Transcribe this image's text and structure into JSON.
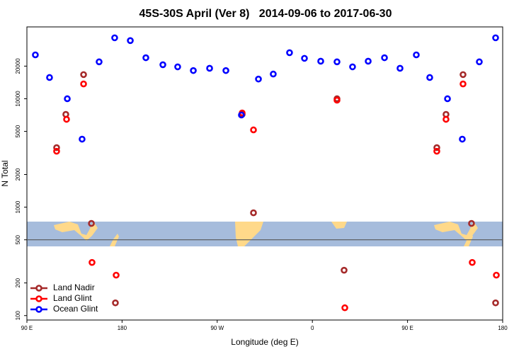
{
  "chart_data": {
    "type": "scatter",
    "title": "45S-30S April (Ver 8)   2014-09-06 to 2017-06-30",
    "xlabel": "Longitude (deg E)",
    "ylabel": "N Total",
    "xlim": [
      90,
      540
    ],
    "xticks": [
      {
        "value": 90,
        "label": "90 E"
      },
      {
        "value": 180,
        "label": "180"
      },
      {
        "value": 270,
        "label": "90 W"
      },
      {
        "value": 360,
        "label": "0"
      },
      {
        "value": 450,
        "label": "90 E"
      },
      {
        "value": 540,
        "label": "180"
      }
    ],
    "ylim": [
      91,
      46000
    ],
    "yticks": [
      100,
      200,
      500,
      1000,
      2000,
      5000,
      10000,
      20000
    ],
    "ylog": true,
    "hline": 500,
    "legend": "lower left",
    "series": [
      {
        "name": "Land Nadir",
        "color": "#a52a2a",
        "x": [
          118.1,
          126.8,
          143.6,
          151,
          173.7,
          293.6,
          304.3,
          383.3,
          390,
          477.7,
          486.4,
          502.5,
          510.5,
          533.3
        ],
        "values": [
          3540,
          7180,
          16700,
          708,
          131,
          7180,
          887,
          10000,
          262,
          3540,
          7180,
          16700,
          708,
          131
        ]
      },
      {
        "name": "Land Glint",
        "color": "#ff0000",
        "x": [
          118.1,
          127.5,
          143.6,
          151.6,
          174.4,
          293.6,
          304.3,
          383.3,
          390.7,
          477.7,
          486.4,
          502.5,
          511.2,
          534
        ],
        "values": [
          3280,
          6460,
          13700,
          309,
          236,
          7400,
          5160,
          9700,
          118,
          3280,
          6460,
          13700,
          309,
          236
        ]
      },
      {
        "name": "Ocean Glint",
        "color": "#0000ff",
        "x": [
          98,
          111.4,
          128.2,
          142.2,
          158.3,
          173,
          187.8,
          202.5,
          218.6,
          232.6,
          247.4,
          262.8,
          278.2,
          292.9,
          309,
          323,
          338.4,
          352.5,
          367.9,
          383.3,
          398,
          412.8,
          428.2,
          442.9,
          458.3,
          471,
          487.8,
          501.8,
          517.9,
          533.3
        ],
        "values": [
          25400,
          15700,
          10000,
          4240,
          21900,
          36500,
          34400,
          23900,
          20600,
          19700,
          18200,
          19100,
          18200,
          7080,
          15200,
          16900,
          26600,
          23600,
          22200,
          21900,
          19700,
          22200,
          23900,
          19100,
          25400,
          15700,
          10000,
          4240,
          21900,
          36500
        ]
      }
    ]
  }
}
